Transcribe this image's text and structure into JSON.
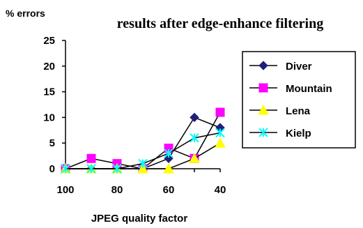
{
  "chart_data": {
    "type": "line",
    "title": "results after edge-enhance filtering",
    "ylabel": "% errors",
    "xlabel": "JPEG quality factor",
    "x": [
      100,
      90,
      80,
      70,
      60,
      50,
      40
    ],
    "x_tick_labels": [
      "100",
      "80",
      "60",
      "40"
    ],
    "x_tick_values": [
      100,
      80,
      60,
      40
    ],
    "x_reversed": true,
    "ylim": [
      0,
      25
    ],
    "y_ticks": [
      0,
      5,
      10,
      15,
      20,
      25
    ],
    "grid": false,
    "legend_position": "right",
    "series": [
      {
        "name": "Diver",
        "marker": "diamond",
        "color": "#1f1f7a",
        "values": [
          0,
          0,
          0,
          0,
          2,
          10,
          8
        ]
      },
      {
        "name": "Mountain",
        "marker": "square",
        "color": "#ff00ff",
        "values": [
          0,
          2,
          1,
          0,
          4,
          2,
          11
        ]
      },
      {
        "name": "Lena",
        "marker": "triangle",
        "color": "#ffff00",
        "values": [
          0,
          0,
          0,
          0,
          0,
          2,
          5
        ]
      },
      {
        "name": "Kielp",
        "marker": "star",
        "color": "#00ffff",
        "values": [
          0,
          0,
          0,
          1,
          3,
          6,
          7
        ]
      }
    ]
  }
}
